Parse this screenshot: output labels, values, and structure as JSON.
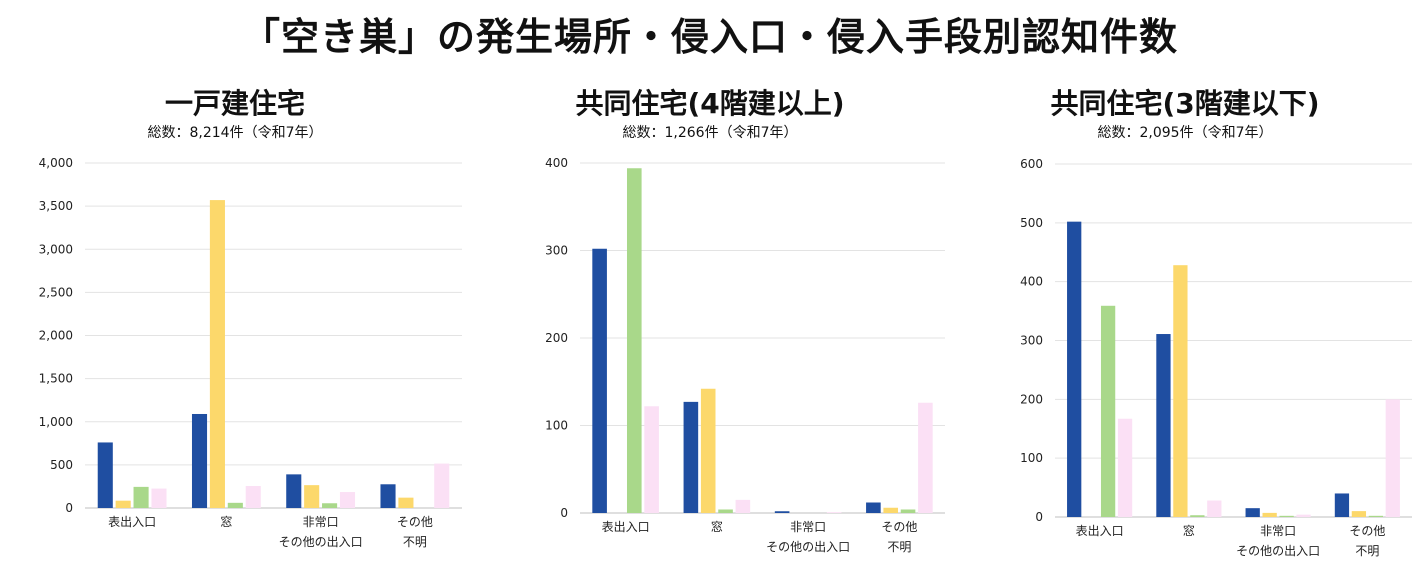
{
  "title": "「空き巣」の発生場所・侵入口・侵入手段別認知件数",
  "colors": [
    "#1f4ea1",
    "#fcd86b",
    "#a9d88a",
    "#fbe0f5"
  ],
  "chart_data": [
    {
      "type": "bar",
      "title": "一戸建住宅",
      "subtitle": "総数：8,214件（令和7年）",
      "categories": [
        [
          "表出入口"
        ],
        [
          "窓"
        ],
        [
          "非常口",
          "その他の出入口"
        ],
        [
          "その他",
          "不明"
        ]
      ],
      "ylim": [
        0,
        4000
      ],
      "yticks": [
        "0",
        "500",
        "1,000",
        "1,500",
        "2,000",
        "2,500",
        "3,000",
        "3,500",
        "4,000"
      ],
      "grid": true,
      "series": [
        {
          "values": [
            760,
            1090,
            390,
            275
          ]
        },
        {
          "values": [
            85,
            3570,
            265,
            120
          ]
        },
        {
          "values": [
            245,
            60,
            55,
            0
          ]
        },
        {
          "values": [
            225,
            255,
            185,
            515
          ]
        }
      ]
    },
    {
      "type": "bar",
      "title": "共同住宅(4階建以上)",
      "subtitle": "総数：1,266件（令和7年）",
      "categories": [
        [
          "表出入口"
        ],
        [
          "窓"
        ],
        [
          "非常口",
          "その他の出入口"
        ],
        [
          "その他",
          "不明"
        ]
      ],
      "ylim": [
        0,
        400
      ],
      "yticks": [
        "0",
        "100",
        "200",
        "300",
        "400"
      ],
      "grid": true,
      "series": [
        {
          "values": [
            302,
            127,
            2,
            12
          ]
        },
        {
          "values": [
            0,
            142,
            0,
            6
          ]
        },
        {
          "values": [
            394,
            4,
            0,
            4
          ]
        },
        {
          "values": [
            122,
            15,
            1,
            126
          ]
        }
      ]
    },
    {
      "type": "bar",
      "title": "共同住宅(3階建以下)",
      "subtitle": "総数：2,095件（令和7年）",
      "categories": [
        [
          "表出入口"
        ],
        [
          "窓"
        ],
        [
          "非常口",
          "その他の出入口"
        ],
        [
          "その他",
          "不明"
        ]
      ],
      "ylim": [
        0,
        600
      ],
      "yticks": [
        "0",
        "100",
        "200",
        "300",
        "400",
        "500",
        "600"
      ],
      "grid": true,
      "series": [
        {
          "values": [
            502,
            311,
            15,
            40
          ]
        },
        {
          "values": [
            0,
            428,
            7,
            10
          ]
        },
        {
          "values": [
            359,
            3,
            2,
            2
          ]
        },
        {
          "values": [
            167,
            28,
            4,
            200
          ]
        }
      ]
    }
  ]
}
